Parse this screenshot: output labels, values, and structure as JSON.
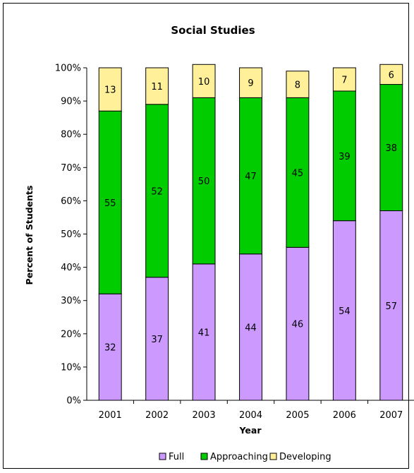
{
  "chart_data": {
    "type": "bar",
    "stacked": true,
    "title": "Social Studies",
    "xlabel": "Year",
    "ylabel": "Percent of Students",
    "ylim": [
      0,
      100
    ],
    "y_ticks": [
      "0%",
      "10%",
      "20%",
      "30%",
      "40%",
      "50%",
      "60%",
      "70%",
      "80%",
      "90%",
      "100%"
    ],
    "categories": [
      "2001",
      "2002",
      "2003",
      "2004",
      "2005",
      "2006",
      "2007"
    ],
    "series": [
      {
        "name": "Full",
        "color": "#CC99FF",
        "values": [
          32,
          37,
          41,
          44,
          46,
          54,
          57
        ]
      },
      {
        "name": "Approaching",
        "color": "#00CC00",
        "values": [
          55,
          52,
          50,
          47,
          45,
          39,
          38
        ]
      },
      {
        "name": "Developing",
        "color": "#FFF099",
        "values": [
          13,
          11,
          10,
          9,
          8,
          7,
          6
        ]
      }
    ],
    "legend_position": "bottom",
    "grid": false
  }
}
